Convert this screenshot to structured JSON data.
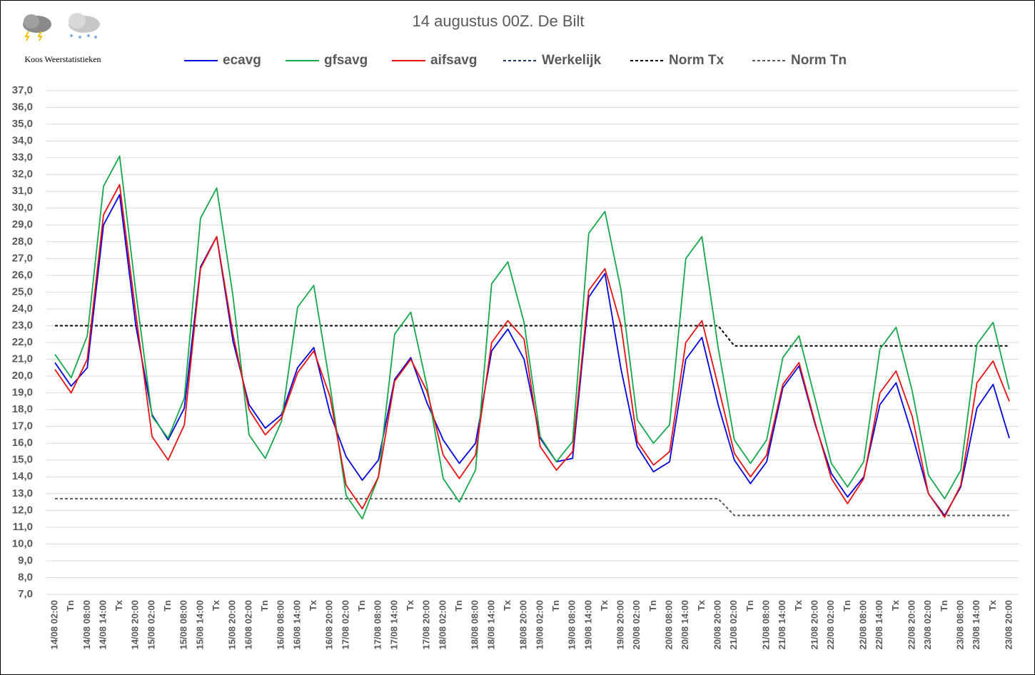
{
  "brand": "Koos Weerstatistieken",
  "chart_data": {
    "type": "line",
    "title": "14 augustus 00Z. De Bilt",
    "categories": [
      "14/08 02:00",
      "Tn",
      "14/08 08:00",
      "14/08 14:00",
      "Tx",
      "14/08 20:00",
      "15/08 02:00",
      "Tn",
      "15/08 08:00",
      "15/08 14:00",
      "Tx",
      "15/08 20:00",
      "16/08 02:00",
      "Tn",
      "16/08 08:00",
      "16/08 14:00",
      "Tx",
      "16/08 20:00",
      "17/08 02:00",
      "Tn",
      "17/08 08:00",
      "17/08 14:00",
      "Tx",
      "17/08 20:00",
      "18/08 02:00",
      "Tn",
      "18/08 08:00",
      "18/08 14:00",
      "Tx",
      "18/08 20:00",
      "19/08 02:00",
      "Tn",
      "19/08 08:00",
      "19/08 14:00",
      "Tx",
      "19/08 20:00",
      "20/08 02:00",
      "Tn",
      "20/08 08:00",
      "20/08 14:00",
      "Tx",
      "20/08 20:00",
      "21/08 02:00",
      "Tn",
      "21/08 08:00",
      "21/08 14:00",
      "Tx",
      "21/08 20:00",
      "22/08 02:00",
      "Tn",
      "22/08 08:00",
      "22/08 14:00",
      "Tx",
      "22/08 20:00",
      "23/08 02:00",
      "Tn",
      "23/08 08:00",
      "23/08 14:00",
      "Tx",
      "23/08 20:00"
    ],
    "series": [
      {
        "name": "ecavg",
        "color": "#0000e0",
        "dashed": false,
        "values": [
          20.8,
          19.4,
          20.5,
          29.0,
          30.8,
          23.0,
          17.7,
          16.2,
          18.1,
          26.5,
          28.3,
          22.1,
          18.3,
          16.9,
          17.7,
          20.5,
          21.7,
          17.8,
          15.2,
          13.8,
          15.0,
          19.8,
          21.1,
          18.4,
          16.2,
          14.8,
          16.0,
          21.5,
          22.8,
          21.0,
          16.3,
          14.9,
          15.1,
          24.7,
          26.1,
          20.4,
          15.8,
          14.3,
          14.9,
          21.0,
          22.3,
          18.3,
          15.0,
          13.6,
          14.9,
          19.3,
          20.6,
          17.1,
          14.2,
          12.8,
          14.0,
          18.3,
          19.6,
          16.5,
          13.0,
          11.7,
          13.4,
          18.1,
          19.5,
          16.3
        ]
      },
      {
        "name": "gfsavg",
        "color": "#14a84a",
        "dashed": false,
        "values": [
          21.3,
          19.9,
          22.4,
          31.3,
          33.1,
          25.0,
          17.6,
          16.3,
          18.7,
          29.4,
          31.2,
          24.8,
          16.5,
          15.1,
          17.3,
          24.1,
          25.4,
          19.5,
          12.9,
          11.5,
          14.0,
          22.5,
          23.8,
          19.4,
          13.9,
          12.5,
          14.4,
          25.5,
          26.8,
          23.2,
          16.4,
          14.9,
          16.1,
          28.5,
          29.8,
          25.1,
          17.4,
          16.0,
          17.1,
          27.0,
          28.3,
          21.7,
          16.2,
          14.8,
          16.2,
          21.1,
          22.4,
          18.6,
          14.8,
          13.4,
          14.9,
          21.6,
          22.9,
          19.1,
          14.1,
          12.7,
          14.4,
          21.9,
          23.2,
          19.2
        ]
      },
      {
        "name": "aifsavg",
        "color": "#e81010",
        "dashed": false,
        "values": [
          20.4,
          19.0,
          21.0,
          29.6,
          31.4,
          23.7,
          16.4,
          15.0,
          17.1,
          26.4,
          28.3,
          22.5,
          18.0,
          16.5,
          17.5,
          20.2,
          21.5,
          18.8,
          13.5,
          12.1,
          14.0,
          19.7,
          21.0,
          19.1,
          15.3,
          13.9,
          15.3,
          22.0,
          23.3,
          22.2,
          15.8,
          14.4,
          15.5,
          25.1,
          26.4,
          23.0,
          16.1,
          14.7,
          15.5,
          22.0,
          23.3,
          19.4,
          15.4,
          14.0,
          15.3,
          19.5,
          20.8,
          17.2,
          13.9,
          12.4,
          13.9,
          19.0,
          20.3,
          17.6,
          13.0,
          11.6,
          13.5,
          19.6,
          20.9,
          18.5
        ]
      },
      {
        "name": "Werkelijk",
        "color": "#1f3864",
        "dashed": true,
        "values": [
          null,
          null,
          null,
          null,
          null,
          null,
          null,
          null,
          null,
          null,
          null,
          null,
          null,
          null,
          null,
          null,
          null,
          null,
          null,
          null,
          null,
          null,
          null,
          null,
          null,
          null,
          null,
          null,
          null,
          null,
          null,
          null,
          null,
          null,
          null,
          null,
          null,
          null,
          null,
          null,
          null,
          null,
          null,
          null,
          null,
          null,
          null,
          null,
          null,
          null,
          null,
          null,
          null,
          null,
          null,
          null,
          null,
          null,
          null,
          null
        ]
      },
      {
        "name": "Norm Tx",
        "color": "#000000",
        "dashed": true,
        "values": [
          23.0,
          23.0,
          23.0,
          23.0,
          23.0,
          23.0,
          23.0,
          23.0,
          23.0,
          23.0,
          23.0,
          23.0,
          23.0,
          23.0,
          23.0,
          23.0,
          23.0,
          23.0,
          23.0,
          23.0,
          23.0,
          23.0,
          23.0,
          23.0,
          23.0,
          23.0,
          23.0,
          23.0,
          23.0,
          23.0,
          23.0,
          23.0,
          23.0,
          23.0,
          23.0,
          23.0,
          23.0,
          23.0,
          23.0,
          23.0,
          23.0,
          23.0,
          21.8,
          21.8,
          21.8,
          21.8,
          21.8,
          21.8,
          21.8,
          21.8,
          21.8,
          21.8,
          21.8,
          21.8,
          21.8,
          21.8,
          21.8,
          21.8,
          21.8,
          21.8
        ]
      },
      {
        "name": "Norm Tn",
        "color": "#595959",
        "dashed": true,
        "values": [
          12.7,
          12.7,
          12.7,
          12.7,
          12.7,
          12.7,
          12.7,
          12.7,
          12.7,
          12.7,
          12.7,
          12.7,
          12.7,
          12.7,
          12.7,
          12.7,
          12.7,
          12.7,
          12.7,
          12.7,
          12.7,
          12.7,
          12.7,
          12.7,
          12.7,
          12.7,
          12.7,
          12.7,
          12.7,
          12.7,
          12.7,
          12.7,
          12.7,
          12.7,
          12.7,
          12.7,
          12.7,
          12.7,
          12.7,
          12.7,
          12.7,
          12.7,
          11.7,
          11.7,
          11.7,
          11.7,
          11.7,
          11.7,
          11.7,
          11.7,
          11.7,
          11.7,
          11.7,
          11.7,
          11.7,
          11.7,
          11.7,
          11.7,
          11.7,
          11.7
        ]
      }
    ],
    "ylim": [
      7,
      37
    ],
    "yticks": [
      {
        "value": 7,
        "label": "7,0"
      },
      {
        "value": 8,
        "label": "8,0"
      },
      {
        "value": 9,
        "label": "9,0"
      },
      {
        "value": 10,
        "label": "10,0"
      },
      {
        "value": 11,
        "label": "11,0"
      },
      {
        "value": 12,
        "label": "12,0"
      },
      {
        "value": 13,
        "label": "13,0"
      },
      {
        "value": 14,
        "label": "14,0"
      },
      {
        "value": 15,
        "label": "15,0"
      },
      {
        "value": 16,
        "label": "16,0"
      },
      {
        "value": 17,
        "label": "17,0"
      },
      {
        "value": 18,
        "label": "18,0"
      },
      {
        "value": 19,
        "label": "19,0"
      },
      {
        "value": 20,
        "label": "20,0"
      },
      {
        "value": 21,
        "label": "21,0"
      },
      {
        "value": 22,
        "label": "22,0"
      },
      {
        "value": 23,
        "label": "23,0"
      },
      {
        "value": 24,
        "label": "24,0"
      },
      {
        "value": 25,
        "label": "25,0"
      },
      {
        "value": 26,
        "label": "26,0"
      },
      {
        "value": 27,
        "label": "27,0"
      },
      {
        "value": 28,
        "label": "28,0"
      },
      {
        "value": 29,
        "label": "29,0"
      },
      {
        "value": 30,
        "label": "30,0"
      },
      {
        "value": 31,
        "label": "31,0"
      },
      {
        "value": 32,
        "label": "32,0"
      },
      {
        "value": 33,
        "label": "33,0"
      },
      {
        "value": 34,
        "label": "34,0"
      },
      {
        "value": 35,
        "label": "35,0"
      },
      {
        "value": 36,
        "label": "36,0"
      },
      {
        "value": 37,
        "label": "37,0"
      }
    ],
    "grid": true,
    "legend": "top"
  }
}
